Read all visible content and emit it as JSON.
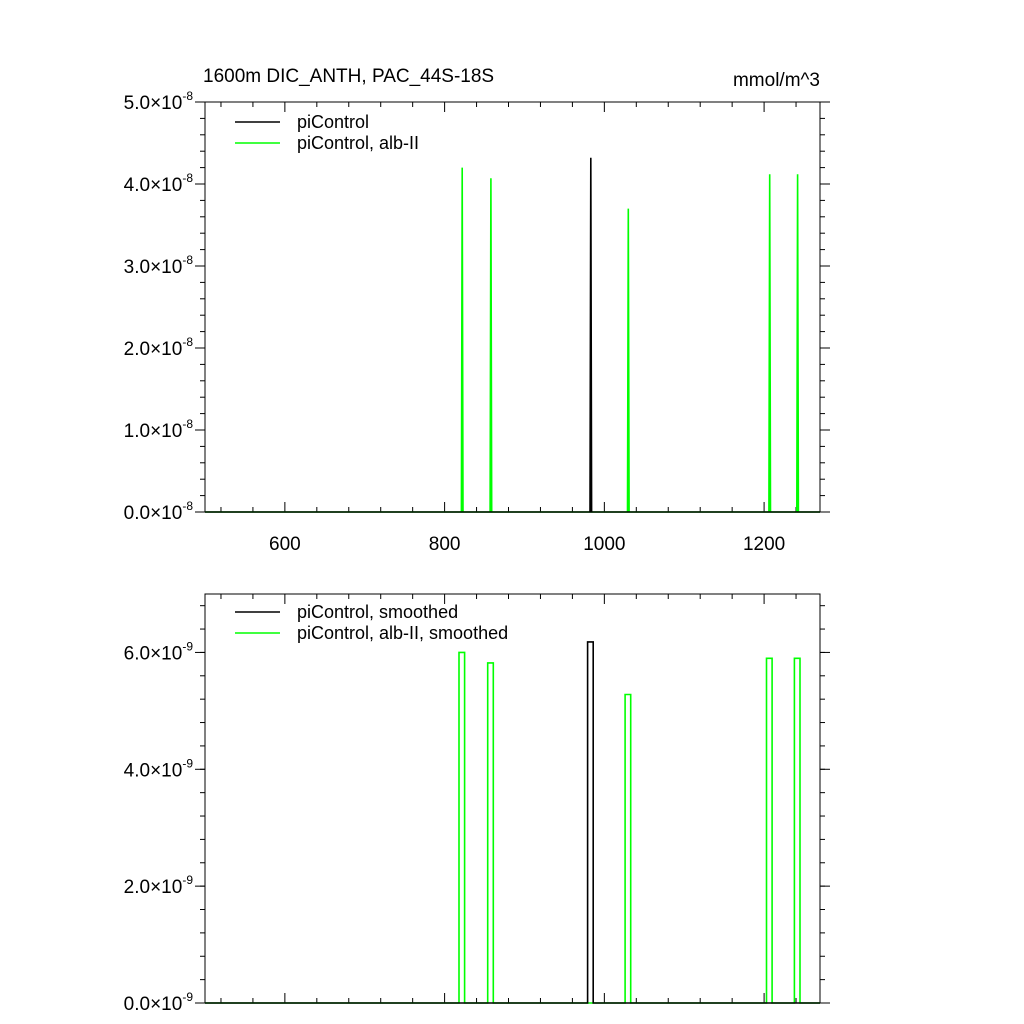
{
  "units": "mmol/m^3",
  "chart_data": [
    {
      "type": "line",
      "title": "1600m DIC_ANTH, PAC_44S-18S",
      "xlabel": "",
      "ylabel": "",
      "xlim": [
        500,
        1270
      ],
      "ylim": [
        0,
        5e-08
      ],
      "x_ticks": [
        600,
        800,
        1000,
        1200
      ],
      "x_tick_labels": [
        "600",
        "800",
        "1000",
        "1200"
      ],
      "y_ticks": [
        0,
        1e-08,
        2e-08,
        3e-08,
        4e-08,
        5e-08
      ],
      "y_tick_labels": [
        {
          "mant": "0.0",
          "exp": "-8"
        },
        {
          "mant": "1.0",
          "exp": "-8"
        },
        {
          "mant": "2.0",
          "exp": "-8"
        },
        {
          "mant": "3.0",
          "exp": "-8"
        },
        {
          "mant": "4.0",
          "exp": "-8"
        },
        {
          "mant": "5.0",
          "exp": "-8"
        }
      ],
      "legend": "top-left",
      "series": [
        {
          "name": "piControl",
          "color": "#000000",
          "x": [
            500,
            982,
            983,
            984,
            1270
          ],
          "y": [
            0,
            0,
            4.32e-08,
            0,
            0
          ]
        },
        {
          "name": "piControl, alb-II",
          "color": "#00ff00",
          "x": [
            500,
            821,
            822,
            823,
            857,
            858,
            859,
            1029,
            1030,
            1031,
            1206,
            1207,
            1208,
            1241,
            1242,
            1243,
            1270
          ],
          "y": [
            0,
            0,
            4.2e-08,
            0,
            0,
            4.07e-08,
            0,
            0,
            3.7e-08,
            0,
            0,
            4.12e-08,
            0,
            0,
            4.12e-08,
            0,
            0
          ]
        }
      ]
    },
    {
      "type": "line",
      "title": "",
      "xlabel": "",
      "ylabel": "",
      "xlim": [
        500,
        1270
      ],
      "ylim": [
        0,
        7e-09
      ],
      "x_ticks": [
        600,
        800,
        1000,
        1200
      ],
      "y_ticks": [
        0,
        2e-09,
        4e-09,
        6e-09
      ],
      "y_tick_labels": [
        {
          "mant": "0.0",
          "exp": "-9"
        },
        {
          "mant": "2.0",
          "exp": "-9"
        },
        {
          "mant": "4.0",
          "exp": "-9"
        },
        {
          "mant": "6.0",
          "exp": "-9"
        }
      ],
      "legend": "top-left",
      "series": [
        {
          "name": "piControl, smoothed",
          "color": "#000000",
          "x": [
            500,
            979,
            979,
            986,
            986,
            1270
          ],
          "y": [
            0,
            0,
            6.18e-09,
            6.18e-09,
            0,
            0
          ]
        },
        {
          "name": "piControl, alb-II, smoothed",
          "color": "#00ff00",
          "x": [
            500,
            818,
            818,
            825,
            825,
            854,
            854,
            861,
            861,
            1026,
            1026,
            1033,
            1033,
            1203,
            1203,
            1210,
            1210,
            1238,
            1238,
            1245,
            1245,
            1270
          ],
          "y": [
            0,
            0,
            6e-09,
            6e-09,
            0,
            0,
            5.82e-09,
            5.82e-09,
            0,
            0,
            5.28e-09,
            5.28e-09,
            0,
            0,
            5.9e-09,
            5.9e-09,
            0,
            0,
            5.9e-09,
            5.9e-09,
            0,
            0
          ]
        }
      ]
    }
  ]
}
